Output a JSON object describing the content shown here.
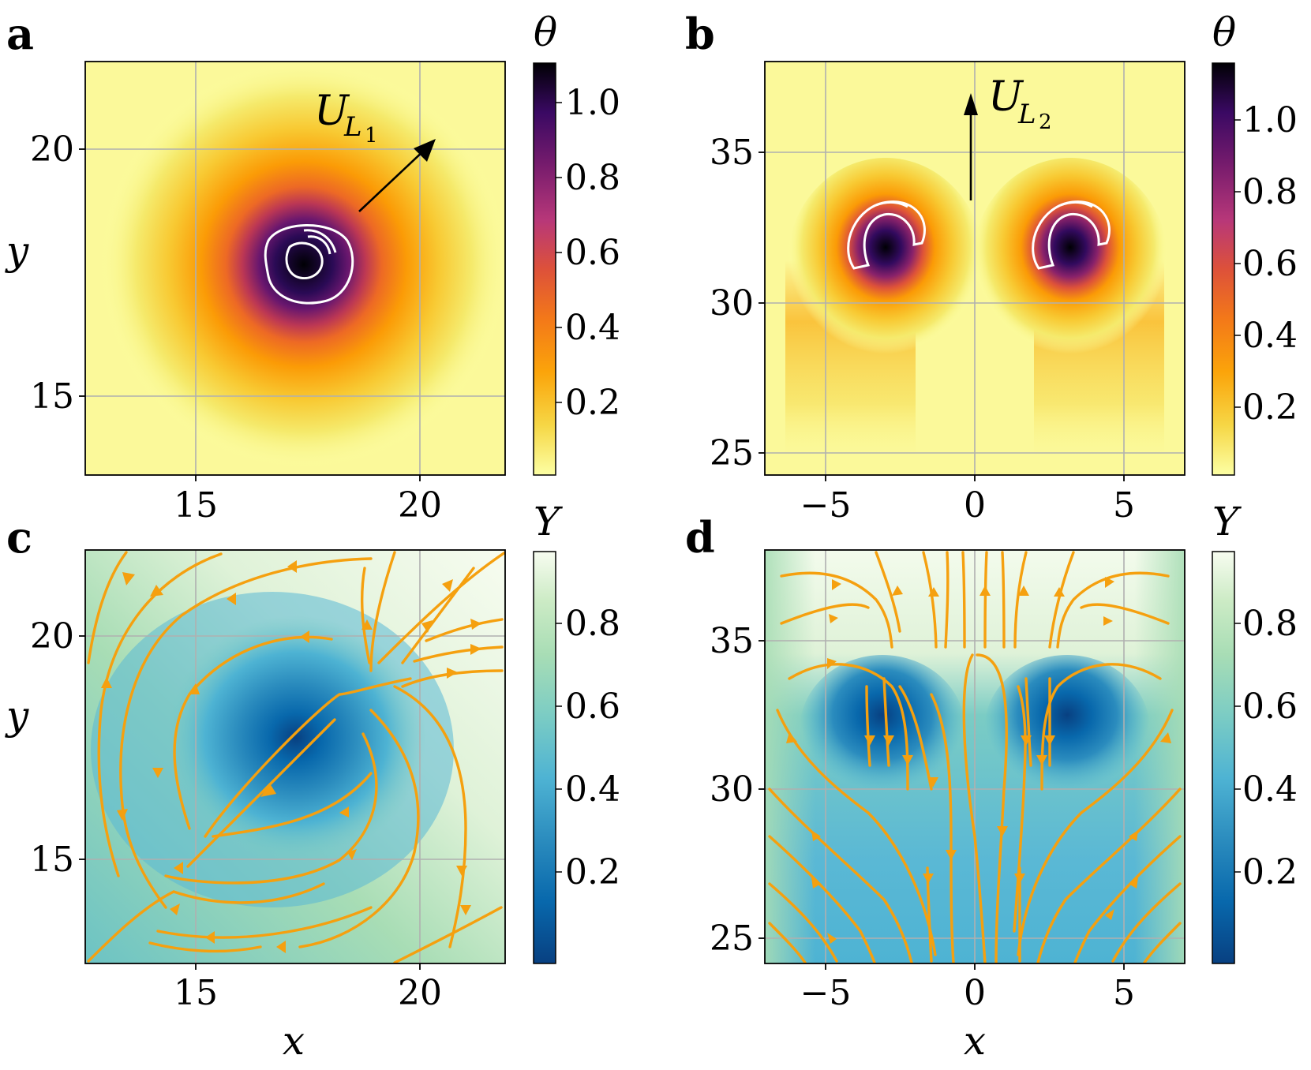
{
  "panels": [
    {
      "id": "a",
      "label": "a",
      "field": "theta",
      "colorbar_label": "θ",
      "colorbar_ticks": [
        "1.0",
        "0.8",
        "0.6",
        "0.4",
        "0.2"
      ],
      "x_ticks": [
        "15",
        "20"
      ],
      "y_ticks": [
        "20",
        "15"
      ],
      "ylabel": "y",
      "annotation": {
        "main": "U",
        "sub": "L",
        "subsub": "1"
      }
    },
    {
      "id": "b",
      "label": "b",
      "field": "theta",
      "colorbar_label": "θ",
      "colorbar_ticks": [
        "1.0",
        "0.8",
        "0.6",
        "0.4",
        "0.2"
      ],
      "x_ticks": [
        "−5",
        "0",
        "5"
      ],
      "y_ticks": [
        "35",
        "30",
        "25"
      ],
      "annotation": {
        "main": "U",
        "sub": "L",
        "subsub": "2"
      }
    },
    {
      "id": "c",
      "label": "c",
      "field": "Y",
      "colorbar_label": "Y",
      "colorbar_ticks": [
        "0.8",
        "0.6",
        "0.4",
        "0.2"
      ],
      "x_ticks": [
        "15",
        "20"
      ],
      "y_ticks": [
        "20",
        "15"
      ],
      "xlabel": "x",
      "ylabel": "y"
    },
    {
      "id": "d",
      "label": "d",
      "field": "Y",
      "colorbar_label": "Y",
      "colorbar_ticks": [
        "0.8",
        "0.6",
        "0.4",
        "0.2"
      ],
      "x_ticks": [
        "−5",
        "0",
        "5"
      ],
      "y_ticks": [
        "35",
        "30",
        "25"
      ],
      "xlabel": "x"
    }
  ],
  "chart_data": [
    {
      "type": "heatmap",
      "panel": "a",
      "quantity": "θ",
      "xlim": [
        12.5,
        22
      ],
      "ylim": [
        12.8,
        21.9
      ],
      "colormap": "inferno_r",
      "colorbar_range": [
        0,
        1.1
      ],
      "hotspots": [
        {
          "x": 17.5,
          "y": 17.6,
          "peak": 1.1
        }
      ],
      "arrow": {
        "from": [
          18.5,
          18.4
        ],
        "to": [
          20.3,
          20.2
        ]
      },
      "grid": true
    },
    {
      "type": "heatmap",
      "panel": "b",
      "quantity": "θ",
      "xlim": [
        -7,
        7
      ],
      "ylim": [
        24.2,
        38
      ],
      "colormap": "inferno_r",
      "colorbar_range": [
        0,
        1.15
      ],
      "hotspots": [
        {
          "x": -3.0,
          "y": 32.1,
          "peak": 1.15
        },
        {
          "x": 3.0,
          "y": 32.1,
          "peak": 1.15
        }
      ],
      "arrow": {
        "from": [
          0,
          33.5
        ],
        "to": [
          0,
          37.4
        ]
      },
      "grid": true
    },
    {
      "type": "heatmap",
      "panel": "c",
      "quantity": "Y",
      "xlim": [
        12.5,
        22
      ],
      "ylim": [
        12.8,
        21.9
      ],
      "colormap": "GnBu_r",
      "colorbar_range": [
        0,
        1
      ],
      "streamlines": true,
      "grid": true
    },
    {
      "type": "heatmap",
      "panel": "d",
      "quantity": "Y",
      "xlim": [
        -7,
        7
      ],
      "ylim": [
        24.2,
        38
      ],
      "colormap": "GnBu_r",
      "colorbar_range": [
        0,
        1
      ],
      "streamlines": true,
      "grid": true
    }
  ],
  "colors": {
    "streamline": "#f5a00f",
    "grid": "#b0b0b0",
    "contour": "#ffffff"
  }
}
